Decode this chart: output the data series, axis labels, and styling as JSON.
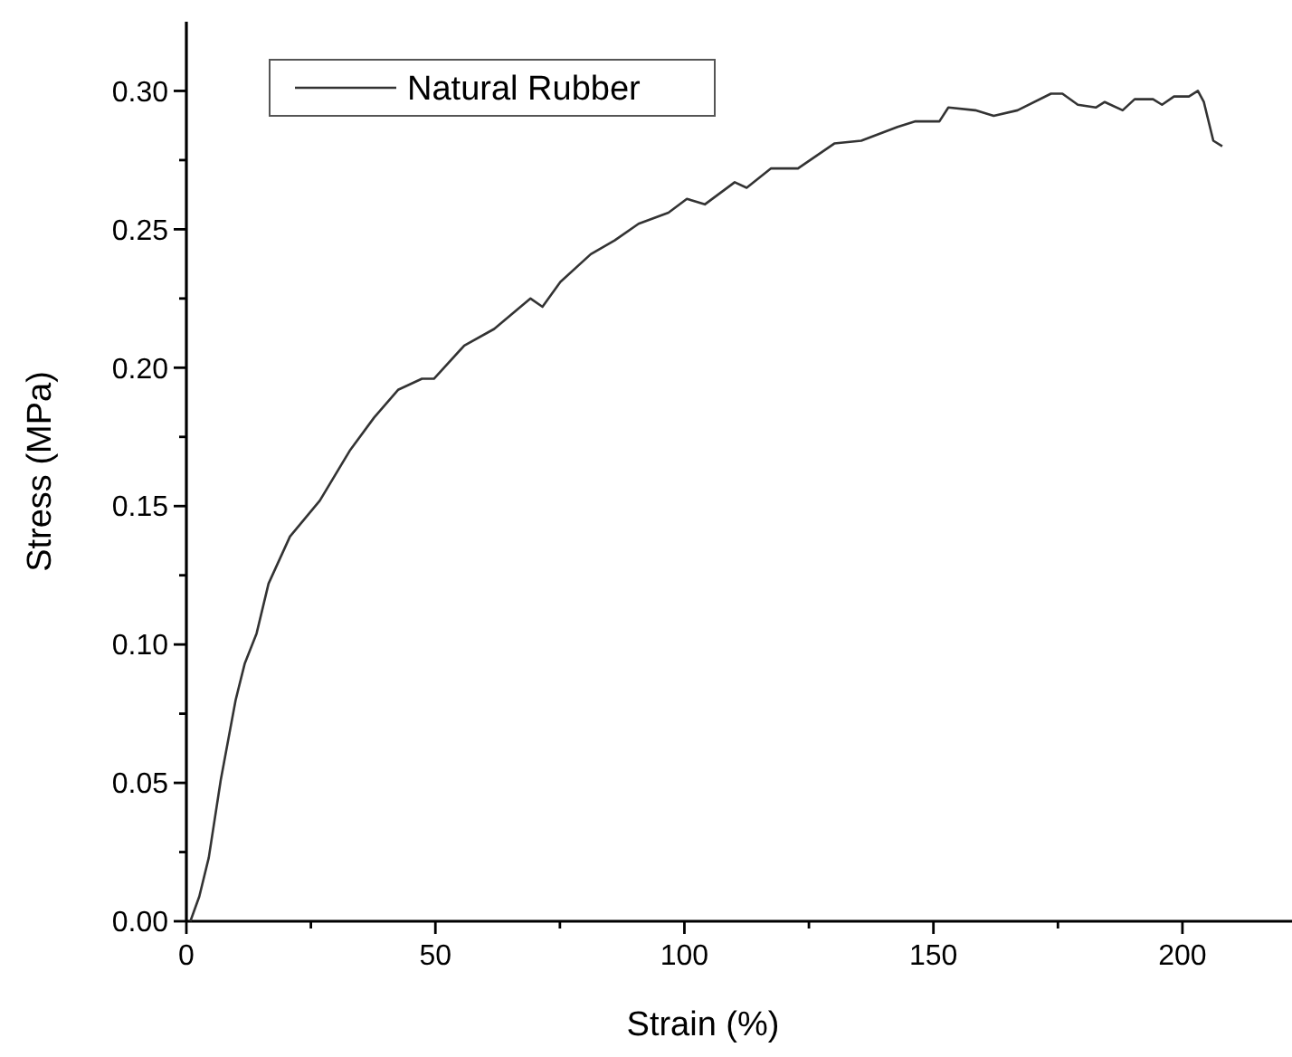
{
  "chart_data": {
    "type": "line",
    "xlabel": "Strain (%)",
    "ylabel": "Stress (MPa)",
    "legend": "top left",
    "line_style": "solid",
    "marker": "none",
    "xlim": [
      0,
      222
    ],
    "ylim": [
      0,
      0.325
    ],
    "xticks": [
      0,
      {
        "value": 25,
        "label": null
      },
      50,
      {
        "value": 75,
        "label": null
      },
      100,
      {
        "value": 125,
        "label": null
      },
      150,
      {
        "value": 175,
        "label": null
      },
      200
    ],
    "yticks": [
      {
        "value": 0,
        "label": "0.00"
      },
      {
        "value": 0.025,
        "label": null
      },
      {
        "value": 0.05,
        "label": "0.05"
      },
      {
        "value": 0.075,
        "label": null
      },
      {
        "value": 0.1,
        "label": "0.10"
      },
      {
        "value": 0.125,
        "label": null
      },
      {
        "value": 0.15,
        "label": "0.15"
      },
      {
        "value": 0.175,
        "label": null
      },
      {
        "value": 0.2,
        "label": "0.20"
      },
      {
        "value": 0.225,
        "label": null
      },
      {
        "value": 0.25,
        "label": "0.25"
      },
      {
        "value": 0.275,
        "label": null
      },
      {
        "value": 0.3,
        "label": "0.30"
      }
    ],
    "series": [
      {
        "name": "Natural Rubber",
        "color": "#333333",
        "x": [
          0.8,
          2.6,
          4.5,
          6.9,
          9.9,
          11.7,
          14.1,
          16.5,
          20.8,
          26.8,
          32.8,
          37.7,
          42.5,
          47.3,
          49.7,
          55.8,
          61.8,
          69.1,
          71.5,
          75.1,
          81.2,
          86.0,
          90.8,
          96.8,
          100.5,
          104.1,
          110.1,
          112.5,
          117.4,
          122.8,
          130.1,
          135.5,
          142.8,
          146.4,
          151.2,
          153.0,
          158.4,
          162.1,
          166.9,
          173.6,
          175.9,
          179.0,
          182.6,
          184.4,
          188.0,
          190.4,
          194.1,
          195.9,
          198.3,
          201.3,
          203.1,
          204.3,
          206.2,
          208.0
        ],
        "values": [
          0.0,
          0.009,
          0.023,
          0.051,
          0.08,
          0.093,
          0.104,
          0.122,
          0.139,
          0.152,
          0.17,
          0.182,
          0.192,
          0.196,
          0.196,
          0.208,
          0.214,
          0.225,
          0.222,
          0.231,
          0.241,
          0.246,
          0.252,
          0.256,
          0.261,
          0.259,
          0.267,
          0.265,
          0.272,
          0.272,
          0.281,
          0.282,
          0.287,
          0.289,
          0.289,
          0.294,
          0.293,
          0.291,
          0.293,
          0.299,
          0.299,
          0.295,
          0.294,
          0.296,
          0.293,
          0.297,
          0.297,
          0.295,
          0.298,
          0.298,
          0.3,
          0.296,
          0.282,
          0.28
        ]
      }
    ]
  }
}
